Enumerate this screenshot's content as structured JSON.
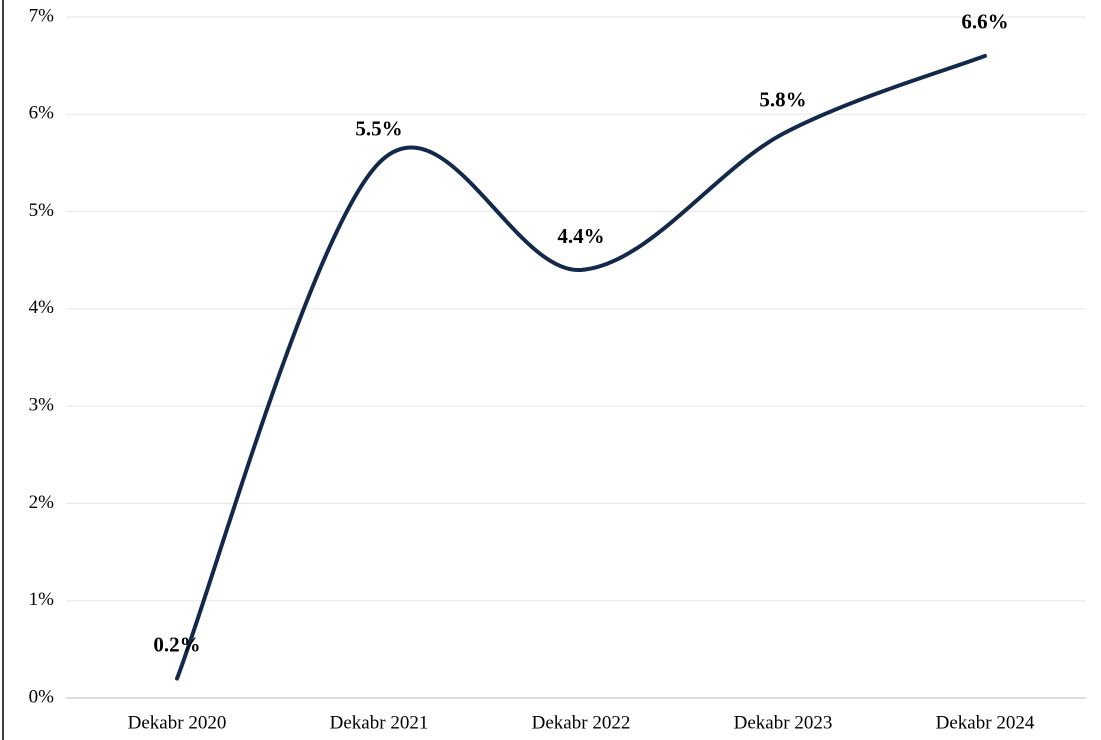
{
  "chart_data": {
    "type": "line",
    "categories": [
      "Dekabr 2020",
      "Dekabr 2021",
      "Dekabr 2022",
      "Dekabr 2023",
      "Dekabr 2024"
    ],
    "values": [
      0.2,
      5.5,
      4.4,
      5.8,
      6.6
    ],
    "value_labels": [
      "0.2%",
      "5.5%",
      "4.4%",
      "5.8%",
      "6.6%"
    ],
    "color": "#13294b",
    "smooth": true,
    "ylim": [
      0,
      7
    ],
    "yticks": [
      {
        "value": 0,
        "label": "0%"
      },
      {
        "value": 1,
        "label": "1%"
      },
      {
        "value": 2,
        "label": "2%"
      },
      {
        "value": 3,
        "label": "3%"
      },
      {
        "value": 4,
        "label": "4%"
      },
      {
        "value": 5,
        "label": "5%"
      },
      {
        "value": 6,
        "label": "6%"
      },
      {
        "value": 7,
        "label": "7%"
      }
    ],
    "grid": true
  }
}
